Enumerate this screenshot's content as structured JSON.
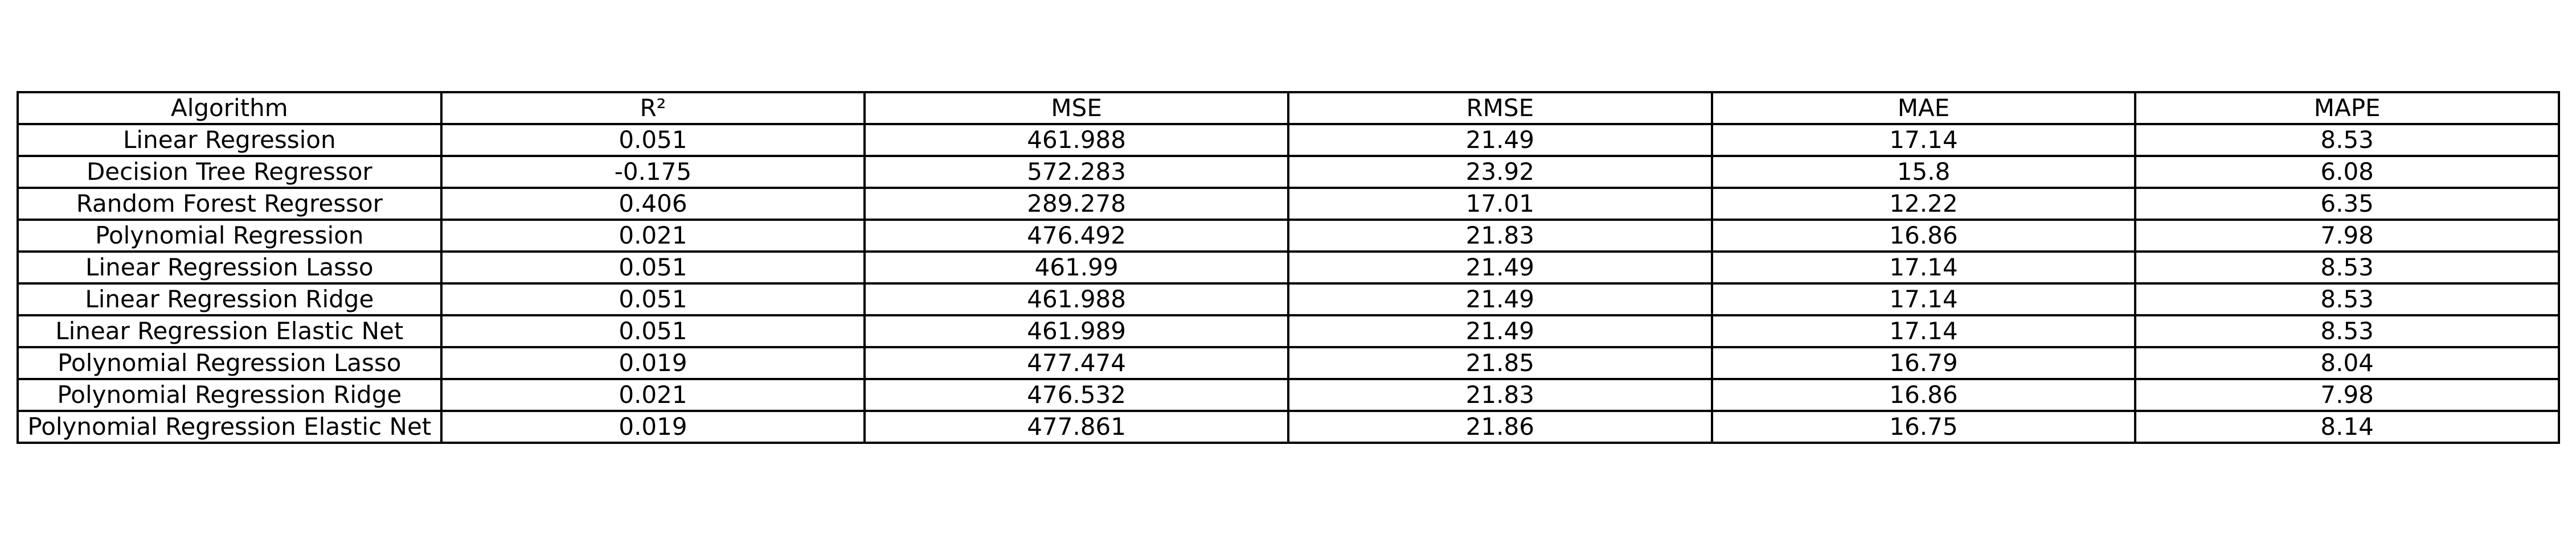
{
  "chart_data": {
    "type": "table",
    "columns": [
      "Algorithm",
      "R²",
      "MSE",
      "RMSE",
      "MAE",
      "MAPE"
    ],
    "rows": [
      [
        "Linear Regression",
        "0.051",
        "461.988",
        "21.49",
        "17.14",
        "8.53"
      ],
      [
        "Decision Tree Regressor",
        "-0.175",
        "572.283",
        "23.92",
        "15.8",
        "6.08"
      ],
      [
        "Random Forest Regressor",
        "0.406",
        "289.278",
        "17.01",
        "12.22",
        "6.35"
      ],
      [
        "Polynomial Regression",
        "0.021",
        "476.492",
        "21.83",
        "16.86",
        "7.98"
      ],
      [
        "Linear Regression Lasso",
        "0.051",
        "461.99",
        "21.49",
        "17.14",
        "8.53"
      ],
      [
        "Linear Regression Ridge",
        "0.051",
        "461.988",
        "21.49",
        "17.14",
        "8.53"
      ],
      [
        "Linear Regression Elastic Net",
        "0.051",
        "461.989",
        "21.49",
        "17.14",
        "8.53"
      ],
      [
        "Polynomial Regression Lasso",
        "0.019",
        "477.474",
        "21.85",
        "16.79",
        "8.04"
      ],
      [
        "Polynomial Regression Ridge",
        "0.021",
        "476.532",
        "21.83",
        "16.86",
        "7.98"
      ],
      [
        "Polynomial Regression Elastic Net",
        "0.019",
        "477.861",
        "21.86",
        "16.75",
        "8.14"
      ]
    ]
  }
}
